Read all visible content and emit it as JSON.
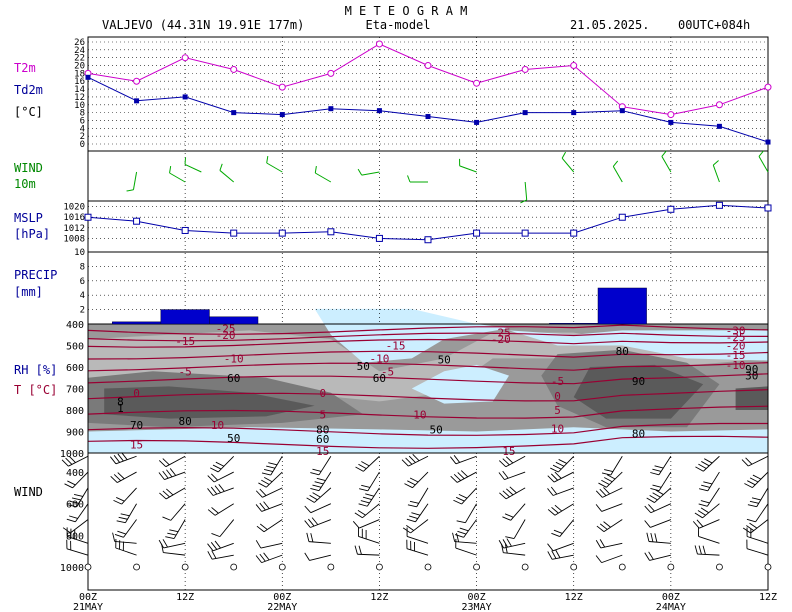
{
  "header": {
    "title": "M E T E O G R A M",
    "location": "VALJEVO (44.31N 19.91E  177m)",
    "model": "Eta-model",
    "date": "21.05.2025.",
    "run": "00UTC+084h"
  },
  "colors": {
    "t2m": "#cc00cc",
    "td2m": "#0000aa",
    "wind": "#00aa00",
    "mslp": "#0000aa",
    "precip": "#0000cc",
    "label_blue": "#000099",
    "label_green": "#008800",
    "contour_t": "#990033",
    "humid_light": "#cceeff",
    "humid_dark": "#555555"
  },
  "x_axis": {
    "ticks": [
      0,
      12,
      24,
      36,
      48,
      60,
      72,
      84
    ],
    "tick_labels": [
      "00Z",
      "12Z",
      "00Z",
      "12Z",
      "00Z",
      "12Z",
      "00Z",
      "12Z"
    ],
    "date_labels": [
      {
        "x": 0,
        "text": "21MAY"
      },
      {
        "x": 24,
        "text": "22MAY"
      },
      {
        "x": 48,
        "text": "23MAY"
      },
      {
        "x": 72,
        "text": "24MAY"
      }
    ]
  },
  "chart_data": [
    {
      "id": "temperature",
      "type": "line",
      "label_lines": [
        "T2m",
        "Td2m",
        "[°C]"
      ],
      "x": [
        0,
        6,
        12,
        18,
        24,
        30,
        36,
        42,
        48,
        54,
        60,
        66,
        72,
        78,
        84
      ],
      "ylim": [
        0,
        26
      ],
      "yticks": [
        0,
        2,
        4,
        6,
        8,
        10,
        12,
        14,
        16,
        18,
        20,
        22,
        24,
        26
      ],
      "series": [
        {
          "name": "T2m",
          "values": [
            18,
            16,
            22,
            19,
            14.5,
            18,
            25.5,
            20,
            15.5,
            19,
            20,
            9.5,
            7.5,
            10,
            14.5
          ]
        },
        {
          "name": "Td2m",
          "values": [
            17,
            11,
            12,
            8,
            7.5,
            9,
            8.5,
            7,
            5.5,
            8,
            8,
            8.5,
            5.5,
            4.5,
            0.5
          ]
        }
      ]
    },
    {
      "id": "wind10m",
      "type": "wind_barbs",
      "label_lines": [
        "WIND",
        "10m"
      ],
      "x": [
        6,
        12,
        14,
        18,
        24,
        30,
        36,
        42,
        48,
        54,
        60,
        66,
        72,
        78,
        84
      ],
      "directions_deg": [
        190,
        300,
        295,
        310,
        300,
        300,
        260,
        270,
        290,
        175,
        320,
        330,
        330,
        340,
        330
      ]
    },
    {
      "id": "mslp",
      "type": "line",
      "label_lines": [
        "MSLP",
        "[hPa]"
      ],
      "x": [
        0,
        6,
        12,
        18,
        24,
        30,
        36,
        42,
        48,
        54,
        60,
        66,
        72,
        78,
        84
      ],
      "ylim": [
        1004,
        1021
      ],
      "yticks": [
        1008,
        1012,
        1016,
        1020
      ],
      "series": [
        {
          "values": [
            1016,
            1014.5,
            1011,
            1010,
            1010,
            1010.5,
            1008,
            1007.5,
            1010,
            1010,
            1010,
            1016,
            1019,
            1020.5,
            1019.5
          ]
        }
      ]
    },
    {
      "id": "precip",
      "type": "bar",
      "label_lines": [
        "PRECIP",
        "[mm]"
      ],
      "bins": [
        {
          "start": 3,
          "end": 9,
          "value": 0.3
        },
        {
          "start": 9,
          "end": 15,
          "value": 2
        },
        {
          "start": 15,
          "end": 21,
          "value": 1
        },
        {
          "start": 57,
          "end": 63,
          "value": 0.1
        },
        {
          "start": 63,
          "end": 69,
          "value": 5
        }
      ],
      "ylim": [
        0,
        10
      ],
      "yticks": [
        2,
        4,
        6,
        8,
        10
      ]
    },
    {
      "id": "rh_temperature",
      "type": "heatmap",
      "label_lines": [
        "RH [%]",
        "T [°C]"
      ],
      "y_axis": "pressure hPa",
      "ylim": [
        1000,
        400
      ],
      "yticks": [
        400,
        500,
        600,
        700,
        800,
        900,
        1000
      ],
      "labels": [
        {
          "x": 17,
          "p": 420,
          "text": "-25"
        },
        {
          "x": 17,
          "p": 450,
          "text": "-20"
        },
        {
          "x": 12,
          "p": 480,
          "text": "-15"
        },
        {
          "x": 18,
          "p": 560,
          "text": "-10"
        },
        {
          "x": 12,
          "p": 620,
          "text": "-5"
        },
        {
          "x": 18,
          "p": 650,
          "text": "60"
        },
        {
          "x": 6,
          "p": 720,
          "text": "0"
        },
        {
          "x": 4,
          "p": 760,
          "text": "8"
        },
        {
          "x": 4,
          "p": 790,
          "text": "1"
        },
        {
          "x": 6,
          "p": 870,
          "text": "70"
        },
        {
          "x": 12,
          "p": 850,
          "text": "80"
        },
        {
          "x": 16,
          "p": 870,
          "text": "10"
        },
        {
          "x": 18,
          "p": 930,
          "text": "50"
        },
        {
          "x": 6,
          "p": 960,
          "text": "15"
        },
        {
          "x": 36,
          "p": 560,
          "text": "-10"
        },
        {
          "x": 37,
          "p": 620,
          "text": "-5"
        },
        {
          "x": 36,
          "p": 650,
          "text": "60"
        },
        {
          "x": 34,
          "p": 595,
          "text": "50"
        },
        {
          "x": 29,
          "p": 720,
          "text": "0"
        },
        {
          "x": 29,
          "p": 820,
          "text": "5"
        },
        {
          "x": 29,
          "p": 890,
          "text": "80"
        },
        {
          "x": 29,
          "p": 935,
          "text": "60"
        },
        {
          "x": 29,
          "p": 990,
          "text": "15"
        },
        {
          "x": 38,
          "p": 500,
          "text": "-15"
        },
        {
          "x": 44,
          "p": 565,
          "text": "50"
        },
        {
          "x": 41,
          "p": 820,
          "text": "10"
        },
        {
          "x": 43,
          "p": 890,
          "text": "50"
        },
        {
          "x": 51,
          "p": 440,
          "text": "-25"
        },
        {
          "x": 51,
          "p": 470,
          "text": "-20"
        },
        {
          "x": 58,
          "p": 665,
          "text": "-5"
        },
        {
          "x": 58,
          "p": 735,
          "text": "0"
        },
        {
          "x": 58,
          "p": 800,
          "text": "5"
        },
        {
          "x": 58,
          "p": 885,
          "text": "10"
        },
        {
          "x": 52,
          "p": 990,
          "text": "15"
        },
        {
          "x": 66,
          "p": 525,
          "text": "80"
        },
        {
          "x": 68,
          "p": 665,
          "text": "90"
        },
        {
          "x": 68,
          "p": 910,
          "text": "80"
        },
        {
          "x": 80,
          "p": 430,
          "text": "-30"
        },
        {
          "x": 80,
          "p": 460,
          "text": "-25"
        },
        {
          "x": 80,
          "p": 500,
          "text": "-20"
        },
        {
          "x": 80,
          "p": 545,
          "text": "-15"
        },
        {
          "x": 80,
          "p": 590,
          "text": "-10"
        },
        {
          "x": 82,
          "p": 610,
          "text": "90"
        },
        {
          "x": 82,
          "p": 640,
          "text": "30"
        }
      ]
    },
    {
      "id": "upper_wind",
      "type": "wind_barbs",
      "label_lines": [
        "WIND"
      ],
      "y_axis": "pressure hPa",
      "ylim": [
        1000,
        330
      ],
      "yticks": [
        400,
        600,
        800,
        1000
      ],
      "ytick_labels": [
        "400",
        "600",
        "800",
        "1000"
      ],
      "x": [
        0,
        6,
        12,
        18,
        24,
        30,
        36,
        42,
        48,
        54,
        60,
        66,
        72,
        78,
        84
      ],
      "levels": [
        1000,
        925,
        850,
        700,
        600,
        500,
        400,
        300
      ]
    }
  ]
}
